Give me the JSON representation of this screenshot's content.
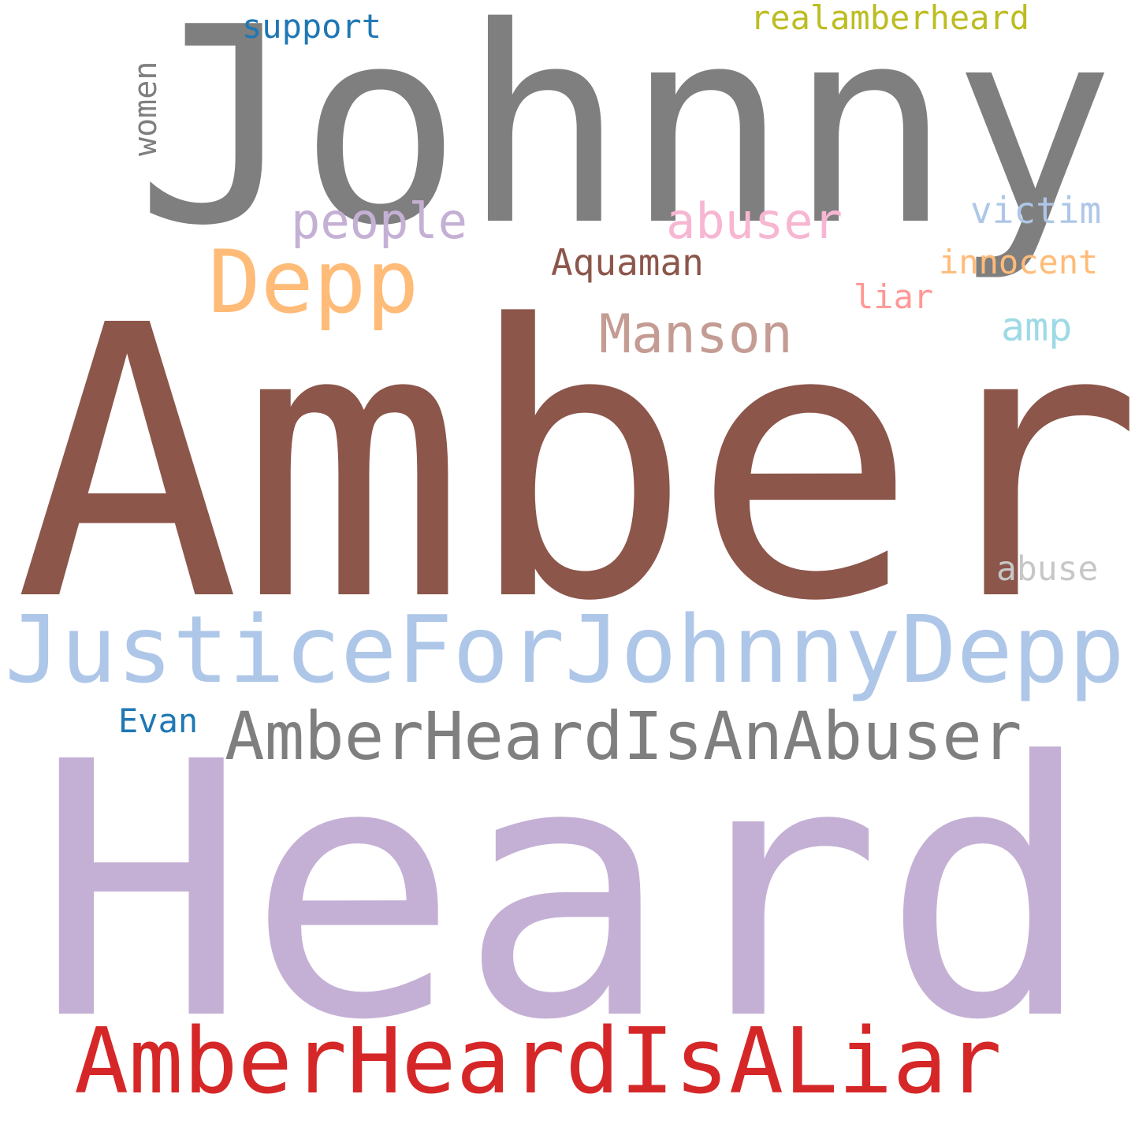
{
  "words": [
    {
      "text": "Amber",
      "color": "#8c564b"
    },
    {
      "text": "Heard",
      "color": "#c5b0d5"
    },
    {
      "text": "Johnny",
      "color": "#7f7f7f"
    },
    {
      "text": "JusticeForJohnnyDepp",
      "color": "#aec7e8"
    },
    {
      "text": "AmberHeardIsALiar",
      "color": "#d62728"
    },
    {
      "text": "AmberHeardIsAnAbuser",
      "color": "#7f7f7f"
    },
    {
      "text": "Depp",
      "color": "#ffbb78"
    },
    {
      "text": "Manson",
      "color": "#c49c94"
    },
    {
      "text": "people",
      "color": "#c5b0d5"
    },
    {
      "text": "abuser",
      "color": "#f7b6d2"
    },
    {
      "text": "realamberheard",
      "color": "#bcbd22"
    },
    {
      "text": "support",
      "color": "#1f77b4"
    },
    {
      "text": "victim",
      "color": "#aec7e8"
    },
    {
      "text": "Aquaman",
      "color": "#8c564b"
    },
    {
      "text": "innocent",
      "color": "#ffbb78"
    },
    {
      "text": "liar",
      "color": "#ff9896"
    },
    {
      "text": "amp",
      "color": "#9edae5"
    },
    {
      "text": "abuse",
      "color": "#c7c7c7"
    },
    {
      "text": "Evan",
      "color": "#1f77b4"
    },
    {
      "text": "women",
      "color": "#7f7f7f"
    }
  ]
}
